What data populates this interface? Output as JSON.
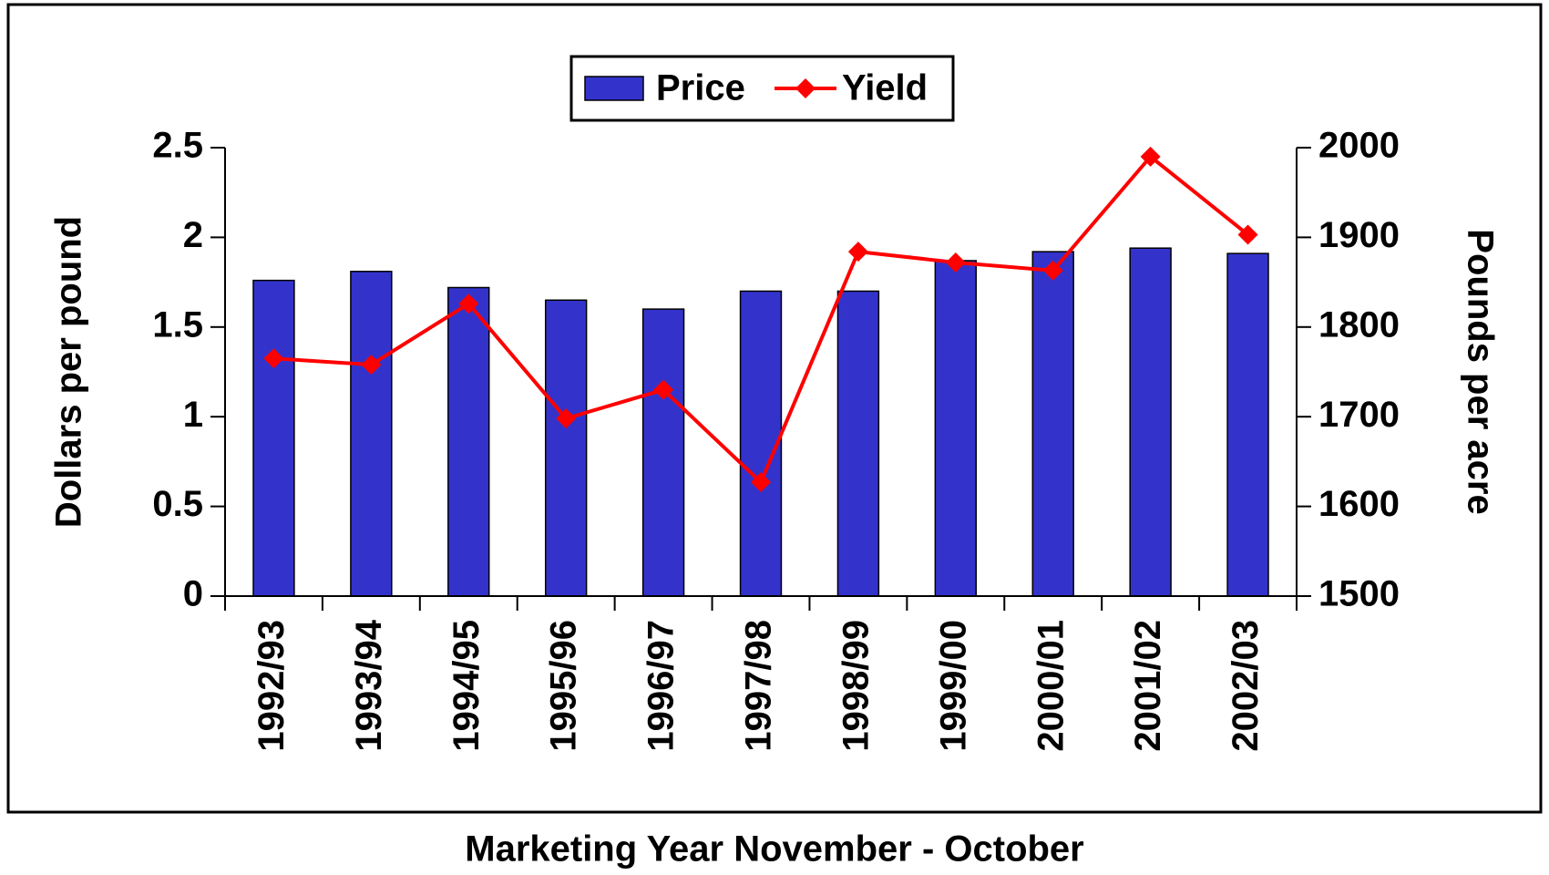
{
  "chart_data": {
    "type": "bar",
    "x_label": "Marketing Year November - October",
    "y_label": "Dollars per pound",
    "y2_label": "Pounds per acre",
    "categories": [
      "1992/93",
      "1993/94",
      "1994/95",
      "1995/96",
      "1996/97",
      "1997/98",
      "1998/99",
      "1999/00",
      "2000/01",
      "2001/02",
      "2002/03"
    ],
    "series": [
      {
        "name": "Price",
        "color": "#3333cc",
        "type": "bar",
        "values": [
          1.76,
          1.81,
          1.72,
          1.65,
          1.6,
          1.7,
          1.7,
          1.87,
          1.92,
          1.94,
          1.91
        ]
      },
      {
        "name": "Yield",
        "color": "#ff0000",
        "type": "line",
        "axis": "y2",
        "values": [
          1765,
          1758,
          1826,
          1698,
          1730,
          1627,
          1884,
          1872,
          1863,
          1990,
          1903
        ]
      }
    ],
    "ylim": [
      0,
      2.5
    ],
    "yticks": [
      0,
      0.5,
      1,
      1.5,
      2,
      2.5
    ],
    "y2lim": [
      1500,
      2000
    ],
    "y2ticks": [
      1500,
      1600,
      1700,
      1800,
      1900,
      2000
    ],
    "legend": "top"
  }
}
